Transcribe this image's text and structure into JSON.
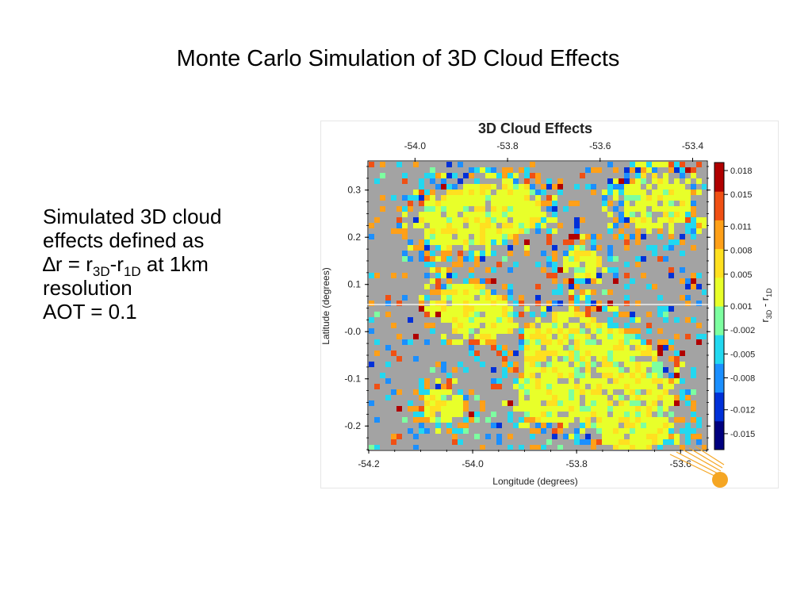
{
  "slide": {
    "title": "Monte Carlo Simulation of 3D Cloud Effects",
    "desc": {
      "line1": "Simulated 3D cloud",
      "line2": "effects defined as",
      "formula_delta": "∆",
      "formula_lhs": "r = r",
      "formula_sub1": "3D",
      "formula_dash": "-r",
      "formula_sub2": "1D",
      "formula_tail": " at 1km",
      "line4": "resolution",
      "line5": "AOT = 0.1"
    }
  },
  "chart_data": {
    "type": "heatmap",
    "title": "3D Cloud Effects",
    "xlabel": "Longitude (degrees)",
    "ylabel": "Latitude (degrees)",
    "xlim": [
      -54.2,
      -53.55
    ],
    "ylim": [
      -0.25,
      0.36
    ],
    "x_ticks_bottom": [
      -54.2,
      -54.0,
      -53.8,
      -53.6
    ],
    "x_ticklabels_bottom": [
      "-54.2",
      "-54.0",
      "-53.8",
      "-53.6"
    ],
    "x_ticks_top": [
      -54.0,
      -53.8,
      -53.6,
      -53.4
    ],
    "x_ticklabels_top": [
      "-54.0",
      "-53.8",
      "-53.6",
      "-53.4"
    ],
    "y_ticks": [
      0.3,
      0.2,
      0.1,
      0.0,
      -0.1,
      -0.2
    ],
    "y_ticklabels": [
      "0.3",
      "0.2",
      "0.1",
      "-0.0",
      "-0.1",
      "-0.2"
    ],
    "colorbar": {
      "label_r": "r",
      "label_sub1": "3D",
      "label_dash": " - r",
      "label_sub2": "1D",
      "range": [
        -0.017,
        0.019
      ],
      "ticks": [
        0.018,
        0.015,
        0.011,
        0.008,
        0.005,
        0.001,
        -0.002,
        -0.005,
        -0.008,
        -0.012,
        -0.015
      ],
      "ticklabels": [
        "0.018",
        "0.015",
        "0.011",
        "0.008",
        "0.005",
        "0.001",
        "-0.002",
        "-0.005",
        "-0.008",
        "-0.012",
        "-0.015"
      ],
      "colors": [
        "#00007f",
        "#0030d8",
        "#1b8fff",
        "#22d8f0",
        "#7dffa0",
        "#e8ff2a",
        "#ffe020",
        "#ffa018",
        "#f05014",
        "#b00000"
      ]
    },
    "no_data_color": "#a3a3a3",
    "grid": false,
    "legend": "colorbar-right"
  }
}
